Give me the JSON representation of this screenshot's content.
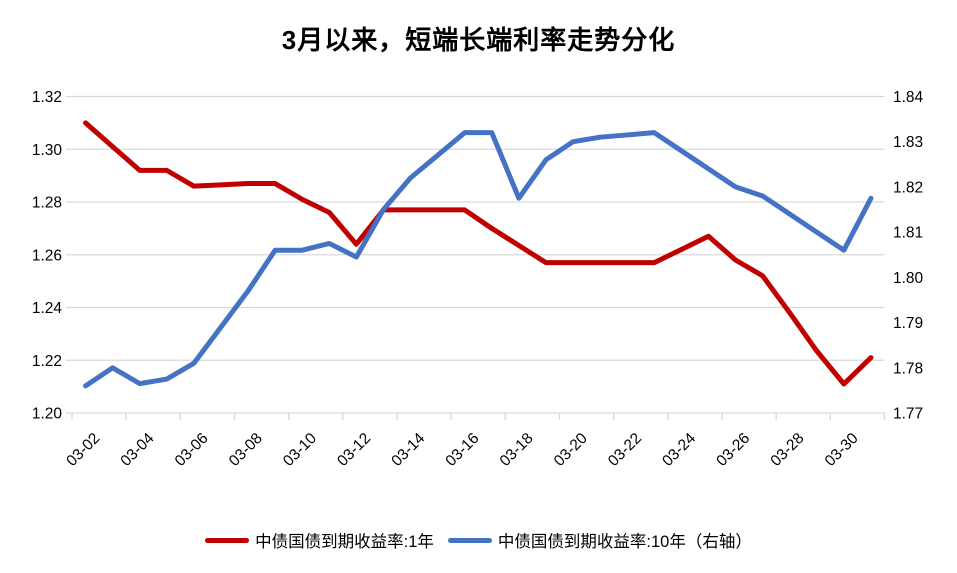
{
  "title": "3月以来，短端长端利率走势分化",
  "colors": {
    "series_1y": "#C00000",
    "series_10y": "#4472C4",
    "grid": "#D9D9D9",
    "text": "#000000",
    "background": "#FFFFFF"
  },
  "legend": [
    {
      "label": "中债国债到期收益率:1年",
      "color": "#C00000"
    },
    {
      "label": "中债国债到期收益率:10年（右轴）",
      "color": "#4472C4"
    }
  ],
  "chart_data": {
    "type": "line",
    "title": "3月以来，短端长端利率走势分化",
    "grid": true,
    "legend_position": "bottom",
    "x": [
      "03-02",
      "03-03",
      "03-04",
      "03-05",
      "03-06",
      "03-07",
      "03-08",
      "03-09",
      "03-10",
      "03-11",
      "03-12",
      "03-13",
      "03-14",
      "03-15",
      "03-16",
      "03-17",
      "03-18",
      "03-19",
      "03-20",
      "03-21",
      "03-22",
      "03-23",
      "03-24",
      "03-25",
      "03-26",
      "03-27",
      "03-28",
      "03-29",
      "03-30",
      "03-31"
    ],
    "x_axis": {
      "tick_labels": [
        "03-02",
        "03-04",
        "03-06",
        "03-08",
        "03-10",
        "03-12",
        "03-14",
        "03-16",
        "03-18",
        "03-20",
        "03-22",
        "03-24",
        "03-26",
        "03-28",
        "03-30"
      ],
      "label_rotation_deg": -45
    },
    "left_axis": {
      "min": 1.2,
      "max": 1.32,
      "tick_labels": [
        "1.32",
        "1.30",
        "1.28",
        "1.26",
        "1.24",
        "1.22",
        "1.20"
      ]
    },
    "right_axis": {
      "min": 1.77,
      "max": 1.84,
      "tick_labels": [
        "1.84",
        "1.83",
        "1.82",
        "1.81",
        "1.80",
        "1.79",
        "1.78",
        "1.77"
      ]
    },
    "series": [
      {
        "name": "中债国债到期收益率:1年",
        "axis": "left",
        "color": "#C00000",
        "values": [
          1.31,
          1.301,
          1.292,
          1.292,
          1.286,
          1.2865,
          1.287,
          1.287,
          1.281,
          1.276,
          1.264,
          1.277,
          1.277,
          1.277,
          1.277,
          1.27,
          1.2635,
          1.257,
          1.257,
          1.257,
          1.257,
          1.257,
          1.262,
          1.267,
          1.258,
          1.252,
          1.238,
          1.2235,
          1.211,
          1.221
        ]
      },
      {
        "name": "中债国债到期收益率:10年（右轴）",
        "axis": "right",
        "color": "#4472C4",
        "values": [
          1.776,
          1.78,
          1.7765,
          1.7775,
          1.781,
          1.789,
          1.797,
          1.806,
          1.806,
          1.8075,
          1.8045,
          1.815,
          1.822,
          1.827,
          1.832,
          1.832,
          1.8175,
          1.826,
          1.83,
          1.831,
          1.8315,
          1.832,
          1.828,
          1.824,
          1.82,
          1.818,
          1.814,
          1.81,
          1.806,
          1.8175
        ]
      }
    ]
  }
}
